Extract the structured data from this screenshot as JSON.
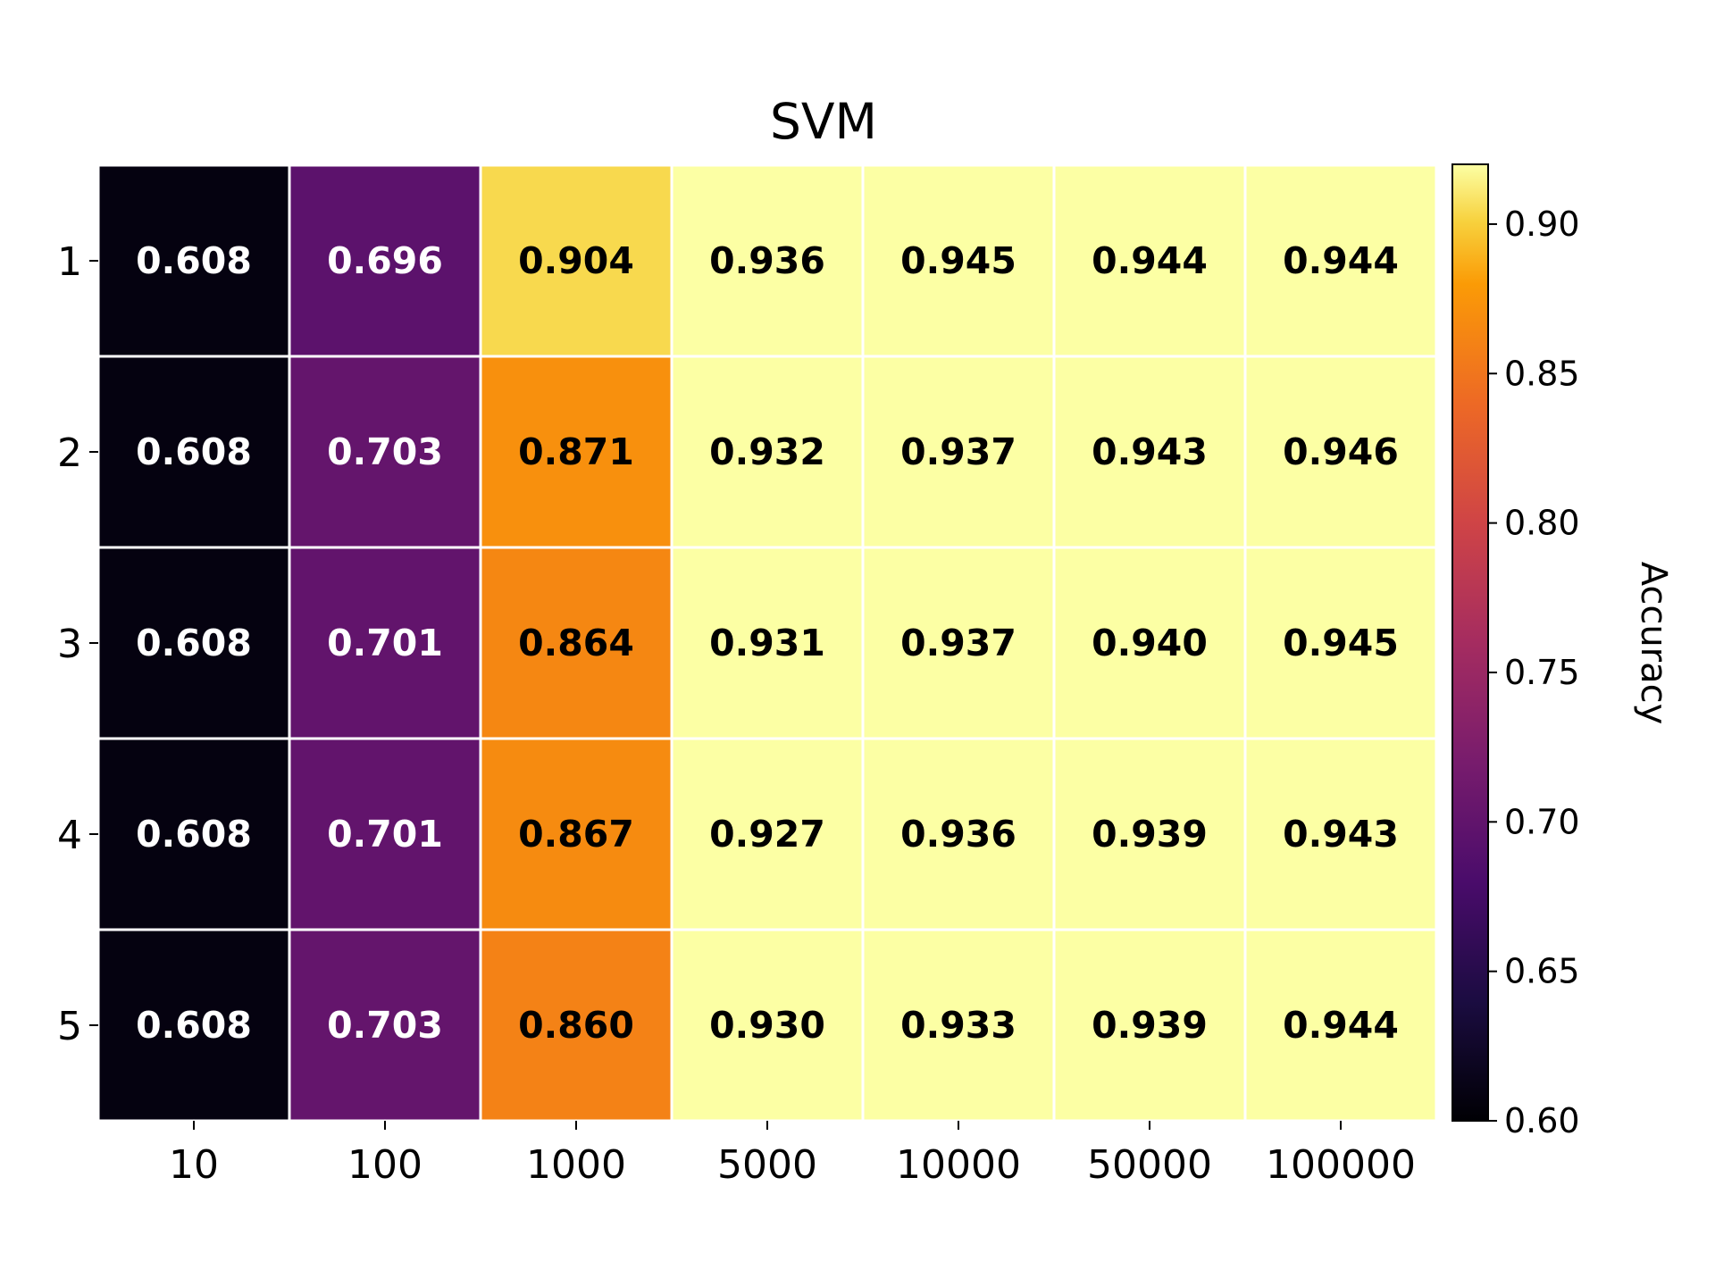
{
  "chart_data": {
    "type": "heatmap",
    "title": "SVM",
    "x_categories": [
      "10",
      "100",
      "1000",
      "5000",
      "10000",
      "50000",
      "100000"
    ],
    "y_categories": [
      "1",
      "2",
      "3",
      "4",
      "5"
    ],
    "values": [
      [
        0.608,
        0.696,
        0.904,
        0.936,
        0.945,
        0.944,
        0.944
      ],
      [
        0.608,
        0.703,
        0.871,
        0.932,
        0.937,
        0.943,
        0.946
      ],
      [
        0.608,
        0.701,
        0.864,
        0.931,
        0.937,
        0.94,
        0.945
      ],
      [
        0.608,
        0.701,
        0.867,
        0.927,
        0.936,
        0.939,
        0.943
      ],
      [
        0.608,
        0.703,
        0.86,
        0.93,
        0.933,
        0.939,
        0.944
      ]
    ],
    "colorbar": {
      "label": "Accuracy",
      "colormap": "inferno",
      "range": [
        0.6,
        0.92
      ],
      "ticks": [
        "0.60",
        "0.65",
        "0.70",
        "0.75",
        "0.80",
        "0.85",
        "0.90"
      ]
    },
    "grid": false,
    "cell_separator_color": "#ffffff"
  }
}
